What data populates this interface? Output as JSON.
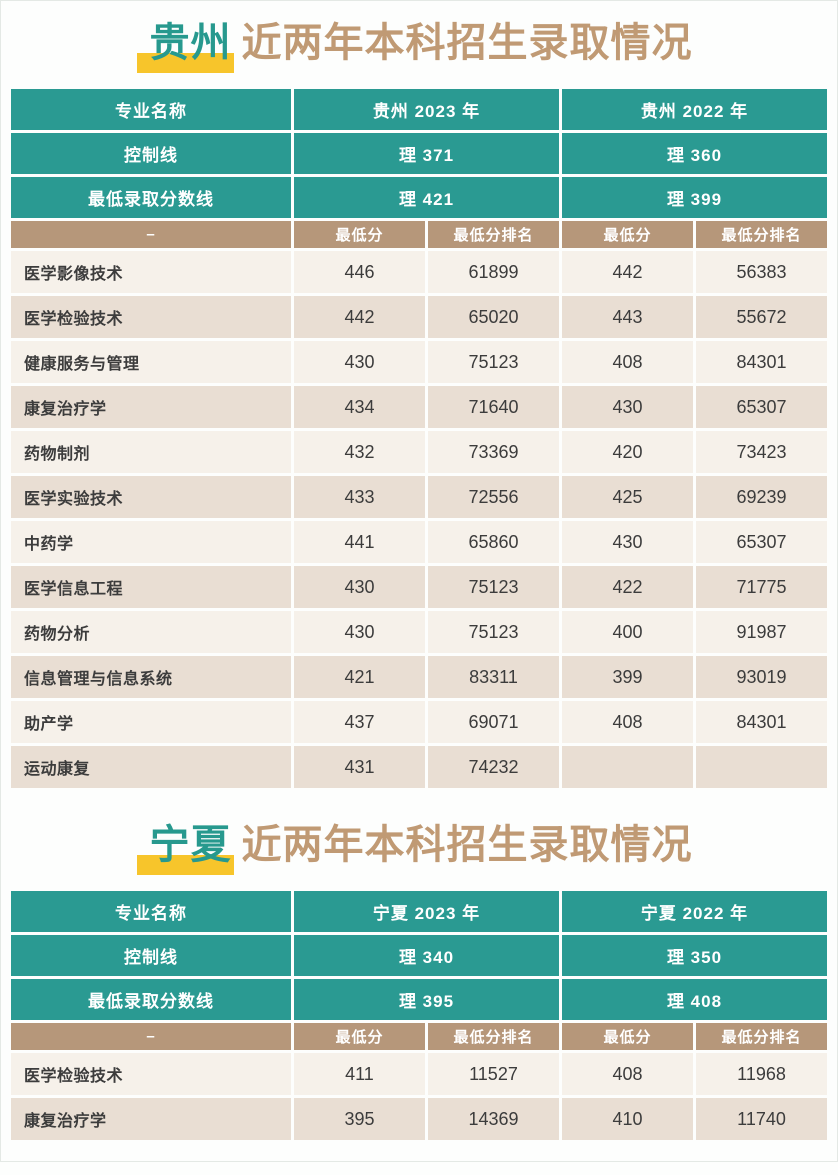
{
  "colors": {
    "teal": "#2a9a92",
    "tan": "#b6977a",
    "row_light": "#f6f1ea",
    "row_dark": "#e9ded3",
    "title_brown": "#c09a74",
    "title_teal": "#27998e",
    "highlight_yellow": "#f7c52b",
    "text_dark": "#3c3c3c",
    "page_bg": "#fdfefd",
    "page_border": "#e4e9e5"
  },
  "sections": [
    {
      "title_highlight": "贵州",
      "title_rest": "近两年本科招生录取情况",
      "header": {
        "major_label": "专业名称",
        "year1": "贵州 2023 年",
        "year2": "贵州 2022 年"
      },
      "control_line": {
        "label": "控制线",
        "year1": "理 371",
        "year2": "理 360"
      },
      "min_score_line": {
        "label": "最低录取分数线",
        "year1": "理 421",
        "year2": "理 399"
      },
      "subheader": {
        "dash": "–",
        "cols": [
          "最低分",
          "最低分排名",
          "最低分",
          "最低分排名"
        ]
      },
      "rows": [
        {
          "major": "医学影像技术",
          "values": [
            "446",
            "61899",
            "442",
            "56383"
          ]
        },
        {
          "major": "医学检验技术",
          "values": [
            "442",
            "65020",
            "443",
            "55672"
          ]
        },
        {
          "major": "健康服务与管理",
          "values": [
            "430",
            "75123",
            "408",
            "84301"
          ]
        },
        {
          "major": "康复治疗学",
          "values": [
            "434",
            "71640",
            "430",
            "65307"
          ]
        },
        {
          "major": "药物制剂",
          "values": [
            "432",
            "73369",
            "420",
            "73423"
          ]
        },
        {
          "major": "医学实验技术",
          "values": [
            "433",
            "72556",
            "425",
            "69239"
          ]
        },
        {
          "major": "中药学",
          "values": [
            "441",
            "65860",
            "430",
            "65307"
          ]
        },
        {
          "major": "医学信息工程",
          "values": [
            "430",
            "75123",
            "422",
            "71775"
          ]
        },
        {
          "major": "药物分析",
          "values": [
            "430",
            "75123",
            "400",
            "91987"
          ]
        },
        {
          "major": "信息管理与信息系统",
          "values": [
            "421",
            "83311",
            "399",
            "93019"
          ]
        },
        {
          "major": "助产学",
          "values": [
            "437",
            "69071",
            "408",
            "84301"
          ]
        },
        {
          "major": "运动康复",
          "values": [
            "431",
            "74232",
            "",
            ""
          ]
        }
      ]
    },
    {
      "title_highlight": "宁夏",
      "title_rest": "近两年本科招生录取情况",
      "header": {
        "major_label": "专业名称",
        "year1": "宁夏 2023 年",
        "year2": "宁夏 2022 年"
      },
      "control_line": {
        "label": "控制线",
        "year1": "理 340",
        "year2": "理 350"
      },
      "min_score_line": {
        "label": "最低录取分数线",
        "year1": "理 395",
        "year2": "理 408"
      },
      "subheader": {
        "dash": "–",
        "cols": [
          "最低分",
          "最低分排名",
          "最低分",
          "最低分排名"
        ]
      },
      "rows": [
        {
          "major": "医学检验技术",
          "values": [
            "411",
            "11527",
            "408",
            "11968"
          ]
        },
        {
          "major": "康复治疗学",
          "values": [
            "395",
            "14369",
            "410",
            "11740"
          ]
        }
      ]
    }
  ]
}
